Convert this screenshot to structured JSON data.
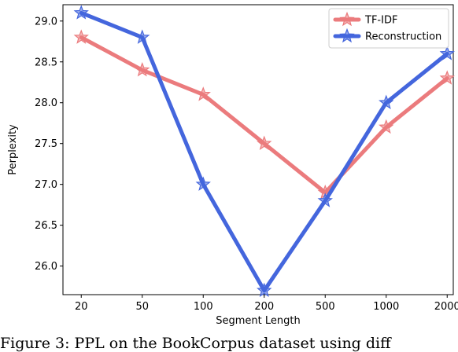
{
  "chart_data": {
    "type": "line",
    "categories": [
      "20",
      "50",
      "100",
      "200",
      "500",
      "1000",
      "2000"
    ],
    "xlabel": "Segment Length",
    "ylabel": "Perplexity",
    "ylim": [
      25.65,
      29.2
    ],
    "yticks": [
      "26.0",
      "26.5",
      "27.0",
      "27.5",
      "28.0",
      "28.5",
      "29.0"
    ],
    "grid": false,
    "legend_position": "top-right",
    "marker": "star",
    "series": [
      {
        "name": "TF-IDF",
        "color": "#eb7b7d",
        "values": [
          28.8,
          28.4,
          28.1,
          27.5,
          26.9,
          27.7,
          28.3
        ]
      },
      {
        "name": "Reconstruction",
        "color": "#4466dd",
        "values": [
          29.1,
          28.8,
          27.0,
          25.7,
          26.8,
          28.0,
          28.6
        ]
      }
    ]
  },
  "caption": "Figure 3: PPL on the BookCorpus dataset using diff"
}
